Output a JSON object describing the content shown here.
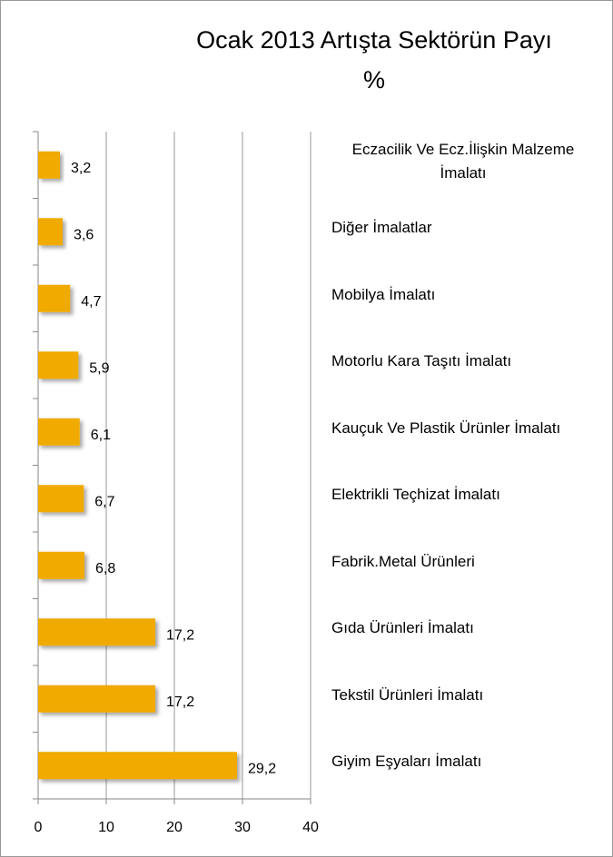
{
  "chart_data": {
    "type": "barh",
    "title": "Ocak 2013 Artışta Sektörün Payı",
    "subtitle": "%",
    "categories": [
      "Eczacilik Ve Ecz.İlişkin Malzeme İmalatı",
      "Diğer İmalatlar",
      "Mobilya İmalatı",
      "Motorlu Kara Taşıtı İmalatı",
      "Kauçuk Ve Plastik Ürünler İmalatı",
      "Elektrikli Teçhizat İmalatı",
      "Fabrik.Metal Ürünleri",
      "Gıda Ürünleri İmalatı",
      "Tekstil Ürünleri İmalatı",
      "Giyim Eşyaları İmalatı"
    ],
    "values": [
      3.2,
      3.6,
      4.7,
      5.9,
      6.1,
      6.7,
      6.8,
      17.2,
      17.2,
      29.2
    ],
    "value_labels": [
      "3,2",
      "3,6",
      "4,7",
      "5,9",
      "6,1",
      "6,7",
      "6,8",
      "17,2",
      "17,2",
      "29,2"
    ],
    "color": "#f0aa00",
    "xlim": [
      0,
      40
    ],
    "xticks": [
      0,
      10,
      20,
      30,
      40
    ],
    "grid": true
  }
}
